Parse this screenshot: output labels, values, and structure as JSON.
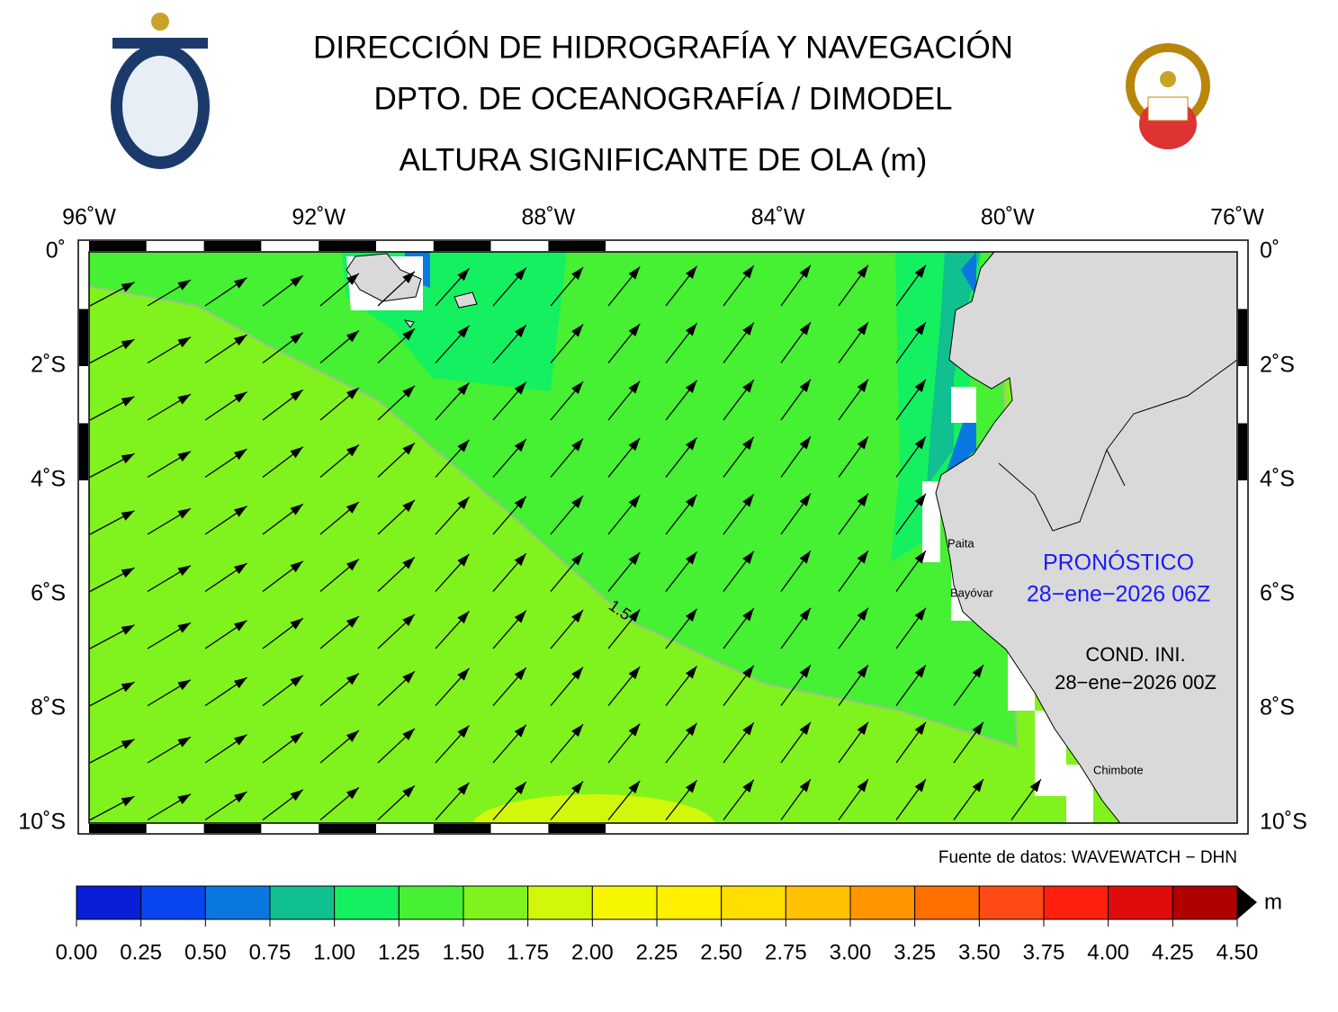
{
  "header": {
    "title": "DIRECCIÓN DE HIDROGRAFÍA Y NAVEGACIÓN",
    "subtitle": "DPTO. DE OCEANOGRAFÍA / DIMODEL",
    "variable": "ALTURA SIGNIFICANTE DE OLA (m)"
  },
  "map": {
    "lon_labels": [
      "96˚W",
      "92˚W",
      "88˚W",
      "84˚W",
      "80˚W",
      "76˚W"
    ],
    "lat_labels": [
      "0˚",
      "2˚S",
      "4˚S",
      "6˚S",
      "8˚S",
      "10˚S"
    ],
    "places": [
      "Paita",
      "Bayóvar",
      "Chimbote"
    ],
    "contour_label": "1.5",
    "forecast_label": "PRONÓSTICO",
    "forecast_time": "28−ene−2026 06Z",
    "init_label": "COND. INI.",
    "init_time": "28−ene−2026 00Z",
    "source": "Fuente de datos: WAVEWATCH − DHN"
  },
  "colorbar": {
    "unit": "m",
    "ticks": [
      {
        "value": 0,
        "label": "0.00"
      },
      {
        "value": 0.25,
        "label": "0.25"
      },
      {
        "value": 0.5,
        "label": "0.50"
      },
      {
        "value": 0.75,
        "label": "0.75"
      },
      {
        "value": 1,
        "label": "1.00"
      },
      {
        "value": 1.25,
        "label": "1.25"
      },
      {
        "value": 1.5,
        "label": "1.50"
      },
      {
        "value": 1.75,
        "label": "1.75"
      },
      {
        "value": 2,
        "label": "2.00"
      },
      {
        "value": 2.25,
        "label": "2.25"
      },
      {
        "value": 2.5,
        "label": "2.50"
      },
      {
        "value": 2.75,
        "label": "2.75"
      },
      {
        "value": 3,
        "label": "3.00"
      },
      {
        "value": 3.25,
        "label": "3.25"
      },
      {
        "value": 3.5,
        "label": "3.50"
      },
      {
        "value": 3.75,
        "label": "3.75"
      },
      {
        "value": 4,
        "label": "4.00"
      },
      {
        "value": 4.25,
        "label": "4.25"
      },
      {
        "value": 4.5,
        "label": "4.50"
      }
    ],
    "colors": [
      "#0a1ed8",
      "#0a46f0",
      "#0a78e0",
      "#10c090",
      "#14f060",
      "#46f032",
      "#80f21e",
      "#d2f70a",
      "#f6f600",
      "#fff000",
      "#ffde00",
      "#ffc200",
      "#ff9600",
      "#ff7000",
      "#ff4a14",
      "#ff2010",
      "#e00c0c",
      "#b00000"
    ]
  }
}
